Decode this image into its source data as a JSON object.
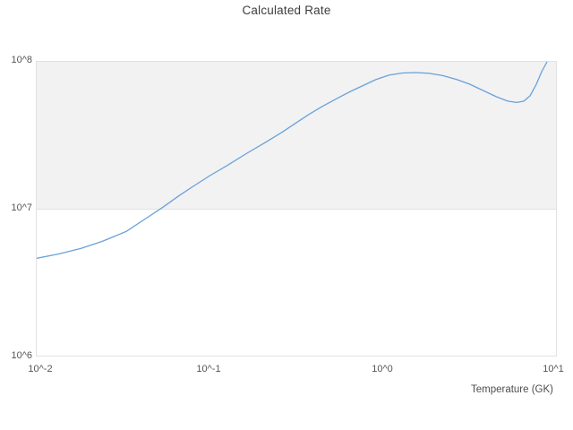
{
  "title": "Calculated Rate",
  "axes": {
    "x": {
      "label": "Temperature (GK)",
      "scale": "log",
      "ticks": [
        "10^-2",
        "10^-1",
        "10^0",
        "10^1"
      ]
    },
    "y": {
      "label": "",
      "scale": "log",
      "ticks": [
        "10^6",
        "10^7",
        "10^8"
      ]
    }
  },
  "colors": {
    "line": "#6aa1d9",
    "band_fill": "#f2f2f2",
    "frame_border": "#e2e2e2",
    "title_text": "#3d3d3d",
    "tick_text": "#555555"
  },
  "chart_data": {
    "type": "line",
    "title": "Calculated Rate",
    "xlabel": "Temperature (GK)",
    "ylabel": "",
    "x_scale": "log",
    "y_scale": "log",
    "xlim": [
      0.01,
      10
    ],
    "ylim": [
      1000000.0,
      100000000.0
    ],
    "grid": "horizontal-decades, alternating gray band between 1e7 and 1e8",
    "legend": "none",
    "series": [
      {
        "name": "Calculated Rate",
        "x": [
          0.01,
          0.0135,
          0.018,
          0.024,
          0.033,
          0.044,
          0.053,
          0.067,
          0.08,
          0.1,
          0.13,
          0.164,
          0.213,
          0.264,
          0.316,
          0.378,
          0.452,
          0.54,
          0.646,
          0.772,
          0.924,
          1.1,
          1.32,
          1.58,
          1.89,
          2.26,
          2.7,
          3.23,
          3.86,
          4.61,
          5.38,
          6.07,
          6.67,
          7.25,
          7.88,
          8.46,
          9.09
        ],
        "y": [
          4600000.0,
          4930000.0,
          5360000.0,
          6000000.0,
          7000000.0,
          8750000.0,
          10100000.0,
          12300000.0,
          14100000.0,
          16700000.0,
          20000000.0,
          23700000.0,
          28400000.0,
          33100000.0,
          38100000.0,
          43800000.0,
          49700000.0,
          55600000.0,
          62100000.0,
          68500000.0,
          75600000.0,
          81100000.0,
          83900000.0,
          84500000.0,
          83400000.0,
          80500000.0,
          76100000.0,
          70500000.0,
          63900000.0,
          57900000.0,
          54000000.0,
          52900000.0,
          54000000.0,
          58700000.0,
          70500000.0,
          85700000.0,
          100000000.0
        ]
      }
    ]
  }
}
